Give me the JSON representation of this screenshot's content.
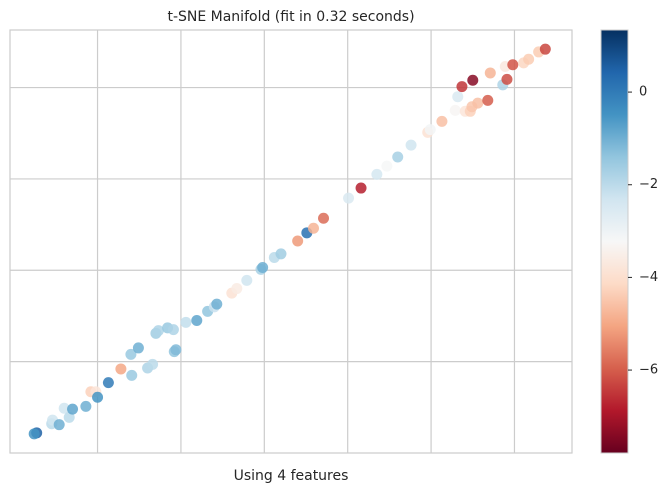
{
  "chart_data": {
    "type": "scatter",
    "title": "t-SNE Manifold (fit in 0.32 seconds)",
    "x_label": "Using 4 features",
    "xlim": [
      -0.05,
      6.69
    ],
    "ylim": [
      0,
      4.63
    ],
    "xticks": [
      1,
      2,
      3,
      4,
      5,
      6
    ],
    "yticks": [
      1,
      2,
      3,
      4
    ],
    "grid": true,
    "x": [
      0.27,
      0.24,
      0.45,
      0.46,
      0.54,
      0.6,
      0.66,
      0.7,
      0.86,
      0.92,
      0.98,
      1.0,
      1.13,
      1.28,
      1.41,
      1.4,
      1.49,
      1.6,
      1.66,
      1.7,
      1.73,
      1.84,
      1.91,
      1.92,
      1.94,
      2.06,
      2.19,
      2.32,
      2.4,
      2.43,
      2.61,
      2.67,
      2.79,
      2.96,
      2.98,
      3.12,
      3.2,
      3.4,
      3.51,
      3.59,
      3.71,
      4.01,
      4.16,
      4.35,
      4.47,
      4.6,
      4.76,
      4.96,
      4.99,
      5.13,
      5.29,
      5.32,
      5.37,
      5.41,
      5.47,
      5.49,
      5.56,
      5.68,
      5.71,
      5.86,
      5.91,
      5.89,
      5.98,
      6.11,
      6.17,
      6.29,
      6.37,
      5.5
    ],
    "y": [
      0.22,
      0.21,
      0.32,
      0.36,
      0.31,
      0.49,
      0.39,
      0.48,
      0.51,
      0.67,
      0.67,
      0.61,
      0.77,
      0.92,
      0.85,
      1.08,
      1.15,
      0.93,
      0.97,
      1.31,
      1.34,
      1.37,
      1.35,
      1.11,
      1.13,
      1.43,
      1.45,
      1.55,
      1.6,
      1.63,
      1.75,
      1.8,
      1.89,
      2.01,
      2.03,
      2.14,
      2.18,
      2.32,
      2.41,
      2.46,
      2.57,
      2.79,
      2.9,
      3.05,
      3.14,
      3.24,
      3.37,
      3.51,
      3.54,
      3.63,
      3.75,
      3.9,
      4.01,
      3.74,
      3.74,
      3.79,
      3.83,
      3.86,
      4.16,
      4.03,
      4.09,
      4.23,
      4.25,
      4.27,
      4.31,
      4.39,
      4.42,
      4.08
    ],
    "c": [
      0.5,
      -0.5,
      -2,
      -2.3,
      -1,
      -2.3,
      -2,
      -0.8,
      -1,
      -4.3,
      -3.8,
      -0.5,
      0,
      -5,
      -1.5,
      -1.5,
      -1,
      -1.8,
      -2,
      -1.6,
      -1.8,
      -1.5,
      -1.8,
      -1.4,
      -1.2,
      -2.1,
      -0.8,
      -1.4,
      -2.2,
      -1,
      -3.9,
      -3.6,
      -2.3,
      -1.7,
      -1,
      -2,
      -1.6,
      -5.2,
      0.2,
      -4.8,
      -5.8,
      -2.5,
      -6.8,
      -2.4,
      -3.2,
      -1.7,
      -2.3,
      -3.9,
      -3.1,
      -4.6,
      -3.3,
      -2.5,
      -6.5,
      -3.8,
      -4.3,
      -4.5,
      -4.6,
      -6,
      -4.8,
      -1.8,
      -6.2,
      -3.7,
      -6.1,
      -4.2,
      -4.4,
      -4.4,
      -6.3,
      -7.4
    ],
    "clim": [
      -7.79,
      1.34
    ],
    "colormap": [
      "#67001f",
      "#b2182b",
      "#d6604d",
      "#f4a582",
      "#fddbc7",
      "#f7f7f7",
      "#d1e5f0",
      "#92c5de",
      "#4393c3",
      "#2166ac",
      "#053061"
    ],
    "cticks": [
      {
        "value": -6,
        "label": "−6"
      },
      {
        "value": -4,
        "label": "−4"
      },
      {
        "value": -2,
        "label": "−2"
      },
      0
    ]
  }
}
